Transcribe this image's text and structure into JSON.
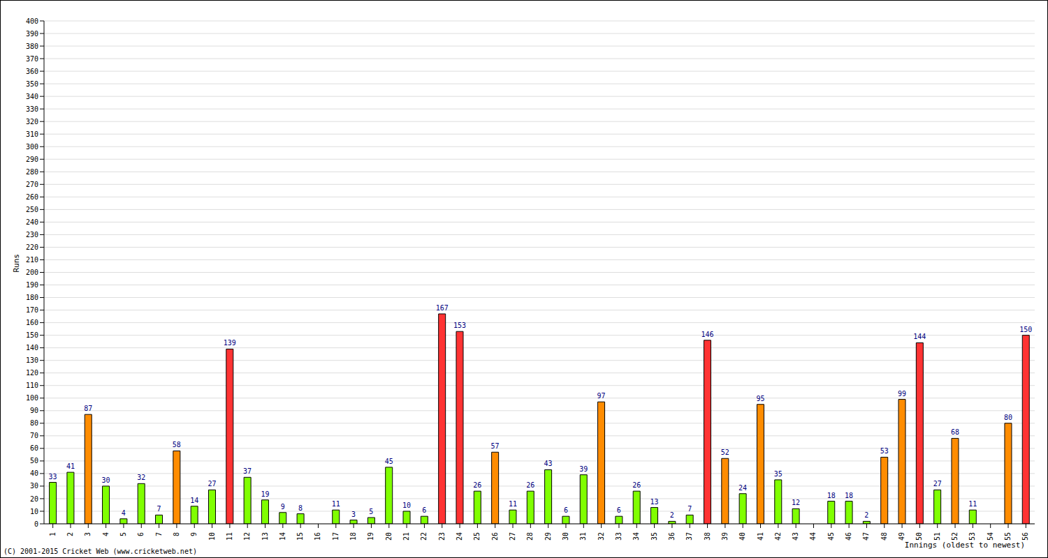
{
  "chart_data": {
    "type": "bar",
    "x_label": "Innings (oldest to newest)",
    "y_label": "Runs",
    "annotation": "(C) 2001-2015 Cricket Web (www.cricketweb.net)",
    "categories": [
      "1",
      "2",
      "3",
      "4",
      "5",
      "6",
      "7",
      "8",
      "9",
      "10",
      "11",
      "12",
      "13",
      "14",
      "15",
      "16",
      "17",
      "18",
      "19",
      "20",
      "21",
      "22",
      "23",
      "24",
      "25",
      "26",
      "27",
      "28",
      "29",
      "30",
      "31",
      "32",
      "33",
      "34",
      "35",
      "36",
      "37",
      "38",
      "39",
      "40",
      "41",
      "42",
      "43",
      "44",
      "45",
      "46",
      "47",
      "48",
      "49",
      "50",
      "51",
      "52",
      "53",
      "54",
      "55",
      "56"
    ],
    "values": [
      33,
      41,
      87,
      30,
      4,
      32,
      7,
      58,
      14,
      27,
      139,
      37,
      19,
      9,
      8,
      0,
      11,
      3,
      5,
      45,
      10,
      6,
      167,
      153,
      26,
      57,
      11,
      26,
      43,
      6,
      39,
      97,
      6,
      26,
      13,
      2,
      7,
      146,
      52,
      24,
      95,
      35,
      12,
      0,
      18,
      18,
      2,
      53,
      99,
      144,
      27,
      68,
      11,
      0,
      80,
      150
    ],
    "colors": [
      "#80ff00",
      "#80ff00",
      "#ff8c00",
      "#80ff00",
      "#80ff00",
      "#80ff00",
      "#80ff00",
      "#ff8c00",
      "#80ff00",
      "#80ff00",
      "#ff3333",
      "#80ff00",
      "#80ff00",
      "#80ff00",
      "#80ff00",
      "#80ff00",
      "#80ff00",
      "#80ff00",
      "#80ff00",
      "#80ff00",
      "#80ff00",
      "#80ff00",
      "#ff3333",
      "#ff3333",
      "#80ff00",
      "#ff8c00",
      "#80ff00",
      "#80ff00",
      "#80ff00",
      "#80ff00",
      "#80ff00",
      "#ff8c00",
      "#80ff00",
      "#80ff00",
      "#80ff00",
      "#80ff00",
      "#80ff00",
      "#ff3333",
      "#ff8c00",
      "#80ff00",
      "#ff8c00",
      "#80ff00",
      "#80ff00",
      "#80ff00",
      "#80ff00",
      "#80ff00",
      "#80ff00",
      "#ff8c00",
      "#ff8c00",
      "#ff3333",
      "#80ff00",
      "#ff8c00",
      "#80ff00",
      "#80ff00",
      "#ff8c00",
      "#ff3333"
    ],
    "ylim": [
      0,
      400
    ],
    "yticks": [
      0,
      10,
      20,
      30,
      40,
      50,
      60,
      70,
      80,
      90,
      100,
      110,
      120,
      130,
      140,
      150,
      160,
      170,
      180,
      190,
      200,
      210,
      220,
      230,
      240,
      250,
      260,
      270,
      280,
      290,
      300,
      310,
      320,
      330,
      340,
      350,
      360,
      370,
      380,
      390,
      400
    ],
    "grid": true,
    "data_labels": true
  }
}
